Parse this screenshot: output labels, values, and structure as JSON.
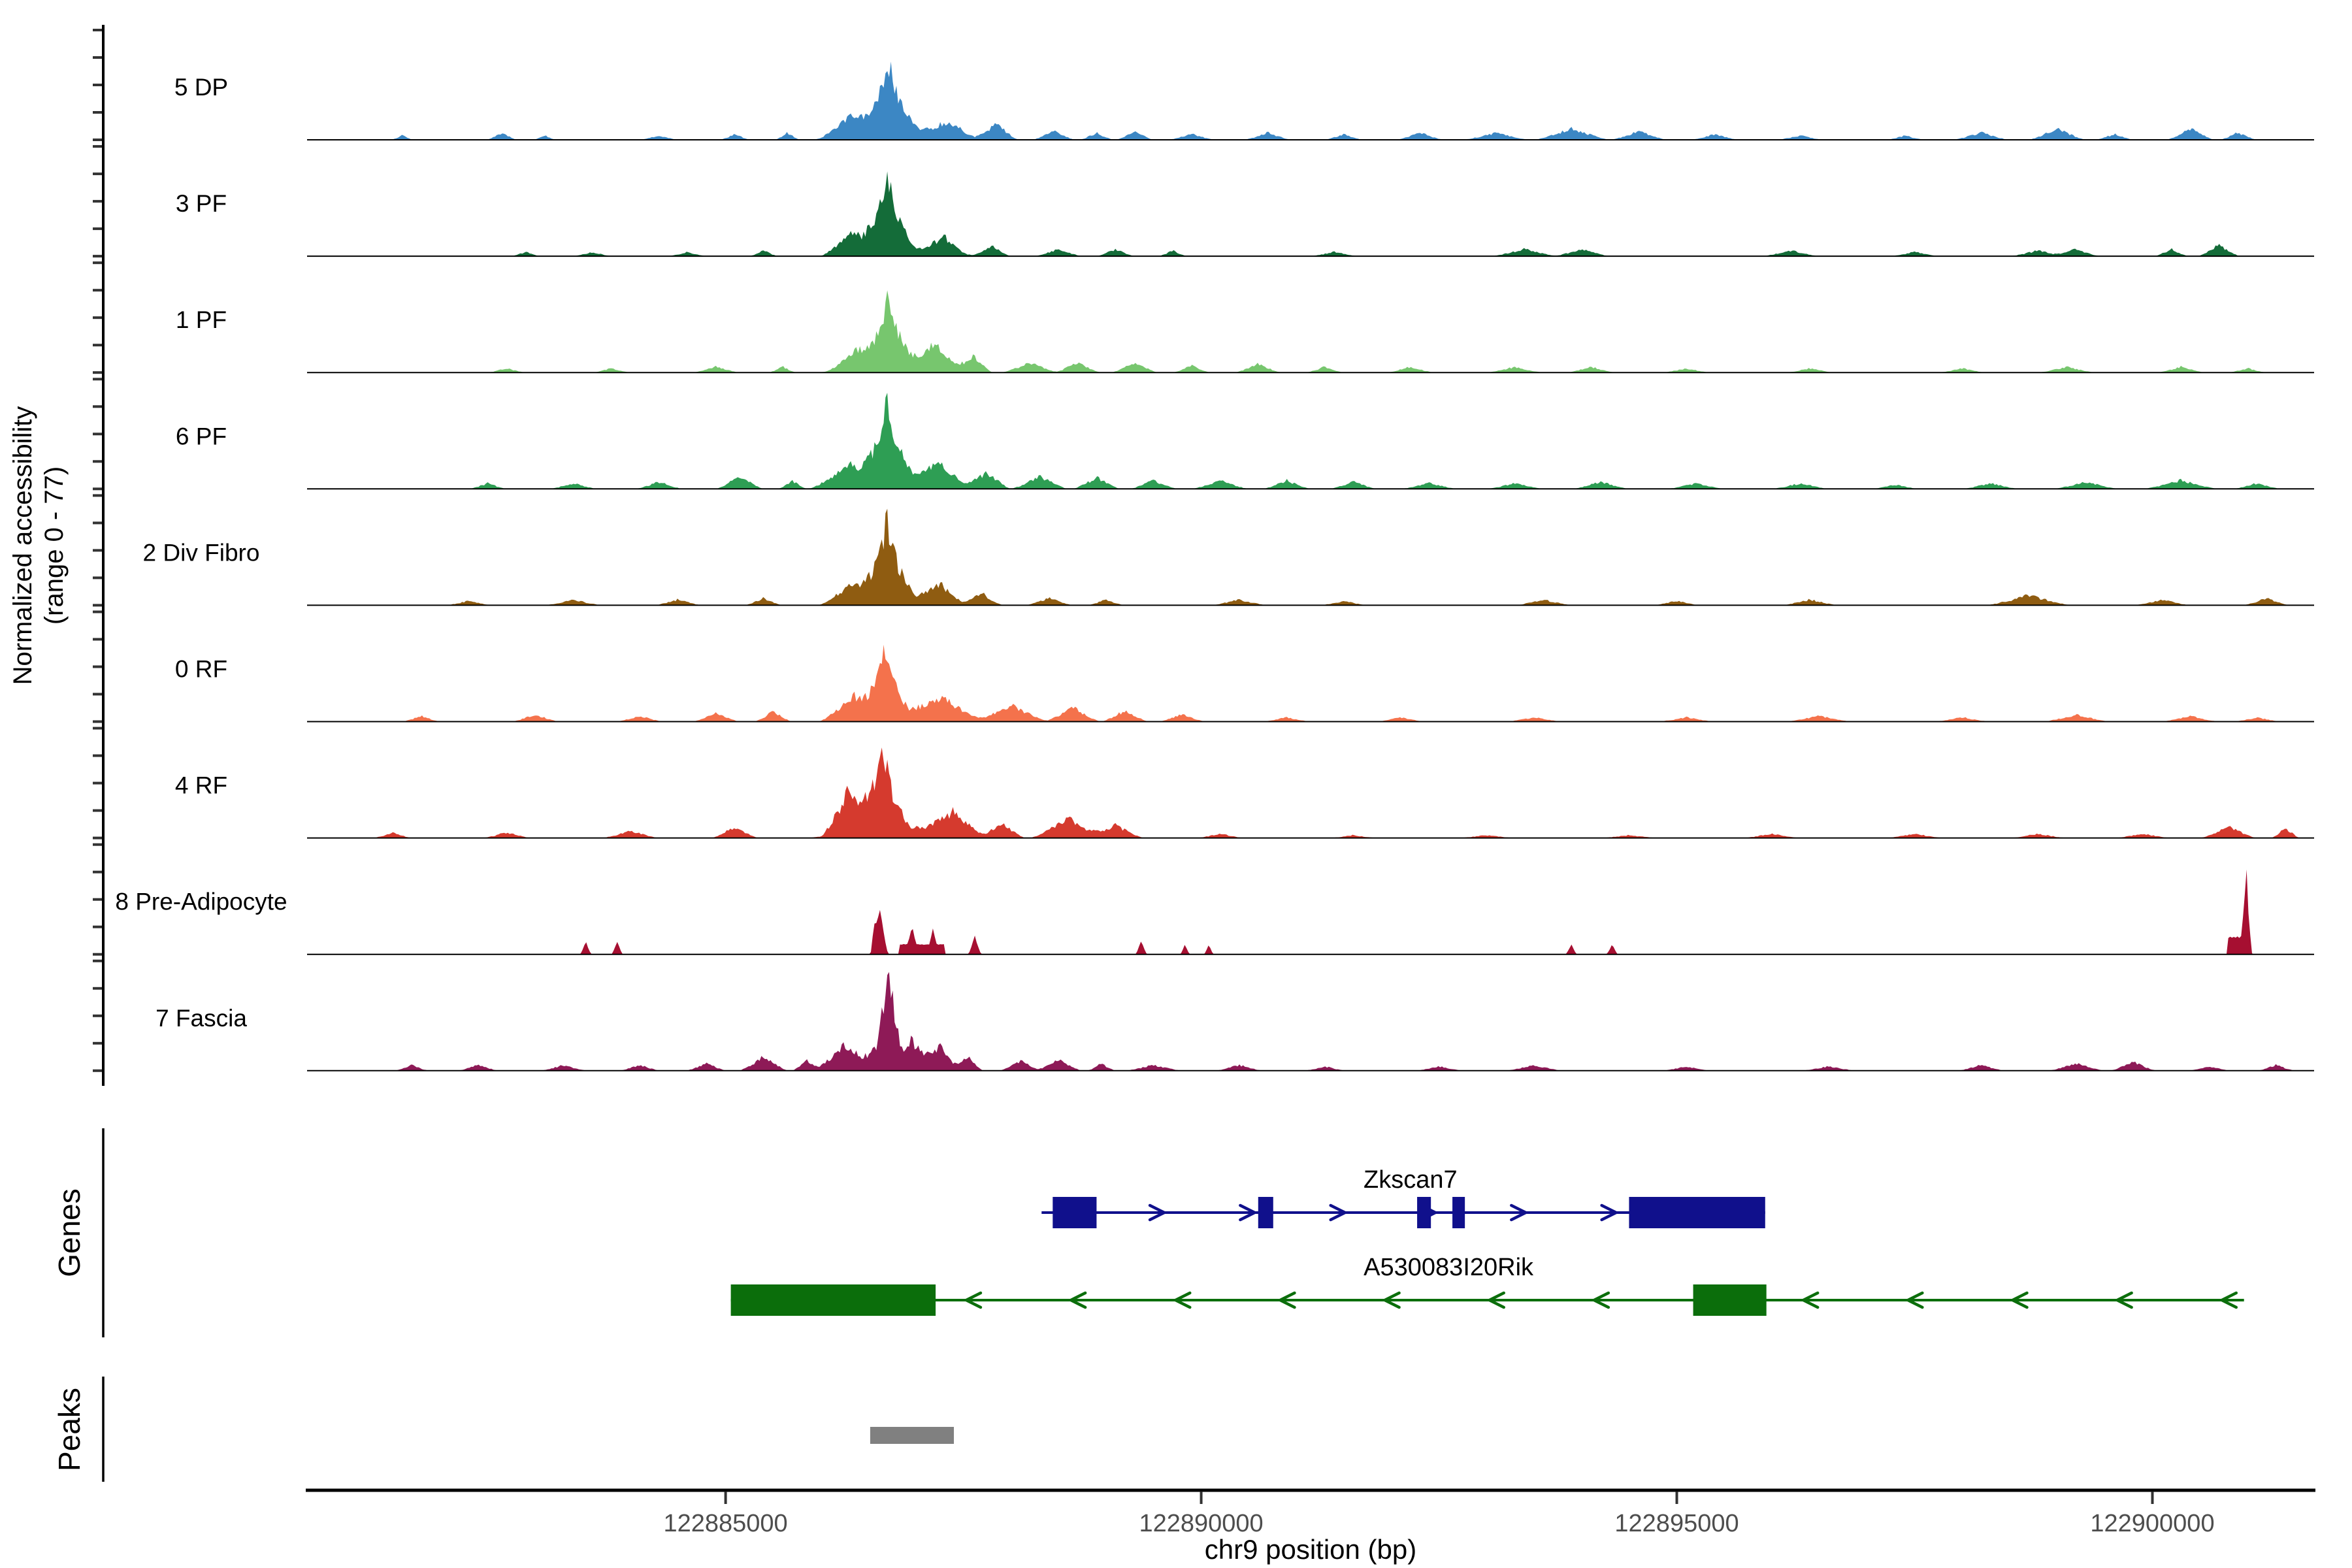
{
  "chart_data": {
    "type": "area",
    "title": "",
    "xlabel": "chr9 position (bp)",
    "ylabel_line1": "Normalized accessibility",
    "ylabel_line2": "(range 0 - 77)",
    "genes_section_label": "Genes",
    "peaks_section_label": "Peaks",
    "xlim": [
      122880600,
      122901700
    ],
    "ylim_per_track": [
      0,
      77
    ],
    "grid": false,
    "x_ticks": [
      {
        "bp": 122885000,
        "label": "122885000"
      },
      {
        "bp": 122890000,
        "label": "122890000"
      },
      {
        "bp": 122895000,
        "label": "122895000"
      },
      {
        "bp": 122900000,
        "label": "122900000"
      }
    ],
    "tracks": [
      {
        "name": "5 DP",
        "color": "#3C87C4",
        "max_value": 57,
        "bumps": [
          [
            122886900,
            1050,
            9
          ],
          [
            122886350,
            380,
            15
          ],
          [
            122886720,
            300,
            33
          ],
          [
            122886700,
            130,
            14
          ],
          [
            122887350,
            260,
            9
          ],
          [
            122887850,
            230,
            11
          ],
          [
            122881600,
            120,
            3
          ],
          [
            122882650,
            160,
            5
          ],
          [
            122883100,
            120,
            3
          ],
          [
            122884300,
            200,
            3
          ],
          [
            122885100,
            160,
            4
          ],
          [
            122885650,
            130,
            5
          ],
          [
            122888450,
            220,
            7
          ],
          [
            122888900,
            180,
            5
          ],
          [
            122889300,
            200,
            6
          ],
          [
            122889900,
            250,
            4
          ],
          [
            122890700,
            250,
            5
          ],
          [
            122891500,
            200,
            4
          ],
          [
            122892300,
            250,
            5
          ],
          [
            122893100,
            350,
            5
          ],
          [
            122893900,
            400,
            8
          ],
          [
            122894600,
            300,
            6
          ],
          [
            122895400,
            250,
            4
          ],
          [
            122896300,
            250,
            3
          ],
          [
            122897400,
            200,
            3
          ],
          [
            122898200,
            300,
            5
          ],
          [
            122899000,
            300,
            8
          ],
          [
            122899600,
            200,
            4
          ],
          [
            122900400,
            250,
            8
          ],
          [
            122900900,
            200,
            5
          ]
        ]
      },
      {
        "name": "3 PF",
        "color": "#146C39",
        "max_value": 64,
        "bumps": [
          [
            122886850,
            900,
            8
          ],
          [
            122886350,
            350,
            14
          ],
          [
            122886700,
            280,
            38
          ],
          [
            122886690,
            120,
            16
          ],
          [
            122887300,
            240,
            10
          ],
          [
            122887800,
            200,
            7
          ],
          [
            122882900,
            150,
            3
          ],
          [
            122883600,
            200,
            3
          ],
          [
            122884600,
            200,
            3
          ],
          [
            122885400,
            150,
            4
          ],
          [
            122888500,
            250,
            5
          ],
          [
            122889100,
            200,
            5
          ],
          [
            122889700,
            150,
            4
          ],
          [
            122891400,
            250,
            3
          ],
          [
            122893400,
            350,
            5
          ],
          [
            122894000,
            300,
            5
          ],
          [
            122896200,
            300,
            4
          ],
          [
            122897500,
            250,
            3
          ],
          [
            122898800,
            300,
            4
          ],
          [
            122899200,
            250,
            5
          ],
          [
            122900200,
            180,
            5
          ],
          [
            122900700,
            220,
            8
          ]
        ]
      },
      {
        "name": "1 PF",
        "color": "#77C66E",
        "max_value": 53,
        "bumps": [
          [
            122886900,
            950,
            9
          ],
          [
            122886400,
            350,
            13
          ],
          [
            122886720,
            280,
            32
          ],
          [
            122886700,
            120,
            13
          ],
          [
            122887200,
            300,
            14
          ],
          [
            122887600,
            200,
            10
          ],
          [
            122882700,
            200,
            3
          ],
          [
            122883800,
            200,
            3
          ],
          [
            122884900,
            250,
            4
          ],
          [
            122885600,
            150,
            4
          ],
          [
            122888200,
            300,
            7
          ],
          [
            122888700,
            250,
            7
          ],
          [
            122889300,
            250,
            7
          ],
          [
            122889900,
            200,
            5
          ],
          [
            122890600,
            250,
            6
          ],
          [
            122891300,
            200,
            4
          ],
          [
            122892200,
            250,
            4
          ],
          [
            122893300,
            300,
            4
          ],
          [
            122894100,
            250,
            4
          ],
          [
            122895100,
            250,
            3
          ],
          [
            122896400,
            250,
            3
          ],
          [
            122898000,
            250,
            3
          ],
          [
            122899100,
            300,
            4
          ],
          [
            122900300,
            250,
            4
          ],
          [
            122901000,
            200,
            3
          ]
        ]
      },
      {
        "name": "6 PF",
        "color": "#2E9E54",
        "max_value": 64,
        "bumps": [
          [
            122886900,
            1100,
            10
          ],
          [
            122886300,
            400,
            14
          ],
          [
            122886700,
            300,
            38
          ],
          [
            122886680,
            130,
            14
          ],
          [
            122887250,
            280,
            12
          ],
          [
            122887750,
            250,
            10
          ],
          [
            122882500,
            200,
            4
          ],
          [
            122883400,
            250,
            4
          ],
          [
            122884300,
            250,
            5
          ],
          [
            122885150,
            250,
            9
          ],
          [
            122885700,
            150,
            6
          ],
          [
            122888300,
            300,
            9
          ],
          [
            122888900,
            250,
            8
          ],
          [
            122889500,
            250,
            6
          ],
          [
            122890200,
            300,
            6
          ],
          [
            122890900,
            250,
            6
          ],
          [
            122891600,
            250,
            5
          ],
          [
            122892400,
            300,
            4
          ],
          [
            122893300,
            300,
            4
          ],
          [
            122894200,
            300,
            5
          ],
          [
            122895200,
            300,
            4
          ],
          [
            122896300,
            300,
            4
          ],
          [
            122897300,
            250,
            3
          ],
          [
            122898300,
            300,
            4
          ],
          [
            122899300,
            350,
            5
          ],
          [
            122900300,
            400,
            6
          ],
          [
            122901100,
            250,
            4
          ]
        ]
      },
      {
        "name": "2 Div Fibro",
        "color": "#8F5C11",
        "max_value": 59,
        "bumps": [
          [
            122886850,
            950,
            9
          ],
          [
            122886350,
            350,
            13
          ],
          [
            122886700,
            280,
            36
          ],
          [
            122886690,
            120,
            15
          ],
          [
            122887250,
            250,
            11
          ],
          [
            122887700,
            220,
            8
          ],
          [
            122882300,
            250,
            3
          ],
          [
            122883400,
            300,
            4
          ],
          [
            122884500,
            250,
            4
          ],
          [
            122885400,
            200,
            5
          ],
          [
            122888400,
            250,
            5
          ],
          [
            122889000,
            200,
            4
          ],
          [
            122890400,
            300,
            4
          ],
          [
            122891500,
            250,
            3
          ],
          [
            122893600,
            300,
            4
          ],
          [
            122895000,
            250,
            3
          ],
          [
            122896400,
            300,
            4
          ],
          [
            122898700,
            450,
            7
          ],
          [
            122900100,
            300,
            4
          ],
          [
            122901200,
            250,
            5
          ]
        ]
      },
      {
        "name": "0 RF",
        "color": "#F4724C",
        "max_value": 53,
        "bumps": [
          [
            122886800,
            900,
            9
          ],
          [
            122886350,
            350,
            14
          ],
          [
            122886680,
            260,
            30
          ],
          [
            122886660,
            120,
            13
          ],
          [
            122887300,
            450,
            13
          ],
          [
            122888000,
            400,
            12
          ],
          [
            122888650,
            300,
            10
          ],
          [
            122889200,
            250,
            8
          ],
          [
            122881800,
            200,
            4
          ],
          [
            122883000,
            250,
            5
          ],
          [
            122884100,
            250,
            4
          ],
          [
            122884900,
            250,
            6
          ],
          [
            122885500,
            200,
            7
          ],
          [
            122889800,
            250,
            5
          ],
          [
            122890900,
            250,
            3
          ],
          [
            122892100,
            250,
            3
          ],
          [
            122893500,
            300,
            3
          ],
          [
            122895100,
            300,
            3
          ],
          [
            122896500,
            350,
            4
          ],
          [
            122898000,
            300,
            3
          ],
          [
            122899200,
            350,
            5
          ],
          [
            122900400,
            300,
            4
          ],
          [
            122901100,
            250,
            3
          ]
        ]
      },
      {
        "name": "4 RF",
        "color": "#D53A2E",
        "max_value": 66,
        "bumps": [
          [
            122886800,
            950,
            10
          ],
          [
            122886300,
            300,
            30
          ],
          [
            122886650,
            280,
            40
          ],
          [
            122886640,
            120,
            14
          ],
          [
            122887400,
            350,
            16
          ],
          [
            122887900,
            250,
            11
          ],
          [
            122888600,
            400,
            14
          ],
          [
            122889100,
            300,
            9
          ],
          [
            122881500,
            200,
            4
          ],
          [
            122882700,
            250,
            4
          ],
          [
            122884000,
            300,
            5
          ],
          [
            122885100,
            250,
            8
          ],
          [
            122890200,
            250,
            3
          ],
          [
            122891600,
            250,
            2
          ],
          [
            122893000,
            300,
            2
          ],
          [
            122894500,
            300,
            2
          ],
          [
            122896000,
            300,
            3
          ],
          [
            122897500,
            300,
            3
          ],
          [
            122898800,
            300,
            3
          ],
          [
            122899900,
            300,
            3
          ],
          [
            122900800,
            300,
            8
          ],
          [
            122901400,
            150,
            7
          ]
        ]
      },
      {
        "name": "8 Pre-Adipocyte",
        "color": "#A60F31",
        "max_value": 48,
        "bumps": [
          [
            122883530,
            60,
            9
          ],
          [
            122883860,
            60,
            9
          ],
          [
            122886620,
            90,
            34
          ],
          [
            122886560,
            40,
            14
          ],
          [
            122887060,
            240,
            7,
            "r"
          ],
          [
            122886960,
            50,
            13
          ],
          [
            122887180,
            40,
            12
          ],
          [
            122887620,
            70,
            13
          ],
          [
            122889370,
            60,
            10
          ],
          [
            122889830,
            50,
            7
          ],
          [
            122890080,
            50,
            7
          ],
          [
            122893890,
            60,
            7
          ],
          [
            122894320,
            60,
            7
          ],
          [
            122900890,
            110,
            12,
            "r"
          ],
          [
            122900990,
            60,
            48
          ]
        ]
      },
      {
        "name": "7 Fascia",
        "color": "#8E1A57",
        "max_value": 66,
        "bumps": [
          [
            122886700,
            1000,
            8
          ],
          [
            122886250,
            300,
            14
          ],
          [
            122886650,
            220,
            16
          ],
          [
            122886720,
            140,
            46
          ],
          [
            122886950,
            250,
            16
          ],
          [
            122887250,
            220,
            14
          ],
          [
            122887550,
            160,
            10
          ],
          [
            122881700,
            180,
            4
          ],
          [
            122882400,
            220,
            4
          ],
          [
            122883300,
            250,
            4
          ],
          [
            122884100,
            220,
            4
          ],
          [
            122884800,
            220,
            5
          ],
          [
            122885400,
            260,
            10
          ],
          [
            122885850,
            150,
            7
          ],
          [
            122888100,
            220,
            7
          ],
          [
            122888500,
            250,
            8
          ],
          [
            122888950,
            150,
            5
          ],
          [
            122889500,
            300,
            4
          ],
          [
            122890400,
            250,
            4
          ],
          [
            122891300,
            220,
            3
          ],
          [
            122892500,
            250,
            3
          ],
          [
            122893500,
            300,
            4
          ],
          [
            122895100,
            250,
            3
          ],
          [
            122896600,
            300,
            3
          ],
          [
            122898200,
            250,
            4
          ],
          [
            122899200,
            300,
            5
          ],
          [
            122899800,
            250,
            6
          ],
          [
            122900600,
            220,
            3
          ],
          [
            122901300,
            200,
            4
          ]
        ]
      }
    ],
    "genes": [
      {
        "name": "Zkscan7",
        "color": "#10108C",
        "strand": "+",
        "start_bp": 122888322,
        "end_bp": 122895929,
        "label_center_bp": 122892200,
        "exons": [
          [
            122888439,
            122888900
          ],
          [
            122890599,
            122890757
          ],
          [
            122892270,
            122892415
          ],
          [
            122892641,
            122892772
          ],
          [
            122894498,
            122895929
          ]
        ]
      },
      {
        "name": "A530083I20Rik",
        "color": "#0B6E0B",
        "strand": "-",
        "start_bp": 122885055,
        "end_bp": 122900963,
        "label_center_bp": 122892600,
        "exons": [
          [
            122885055,
            122887208
          ],
          [
            122895172,
            122895942
          ]
        ]
      }
    ],
    "peaks": [
      [
        122886520,
        122887400
      ]
    ],
    "peak_color": "#808080"
  }
}
